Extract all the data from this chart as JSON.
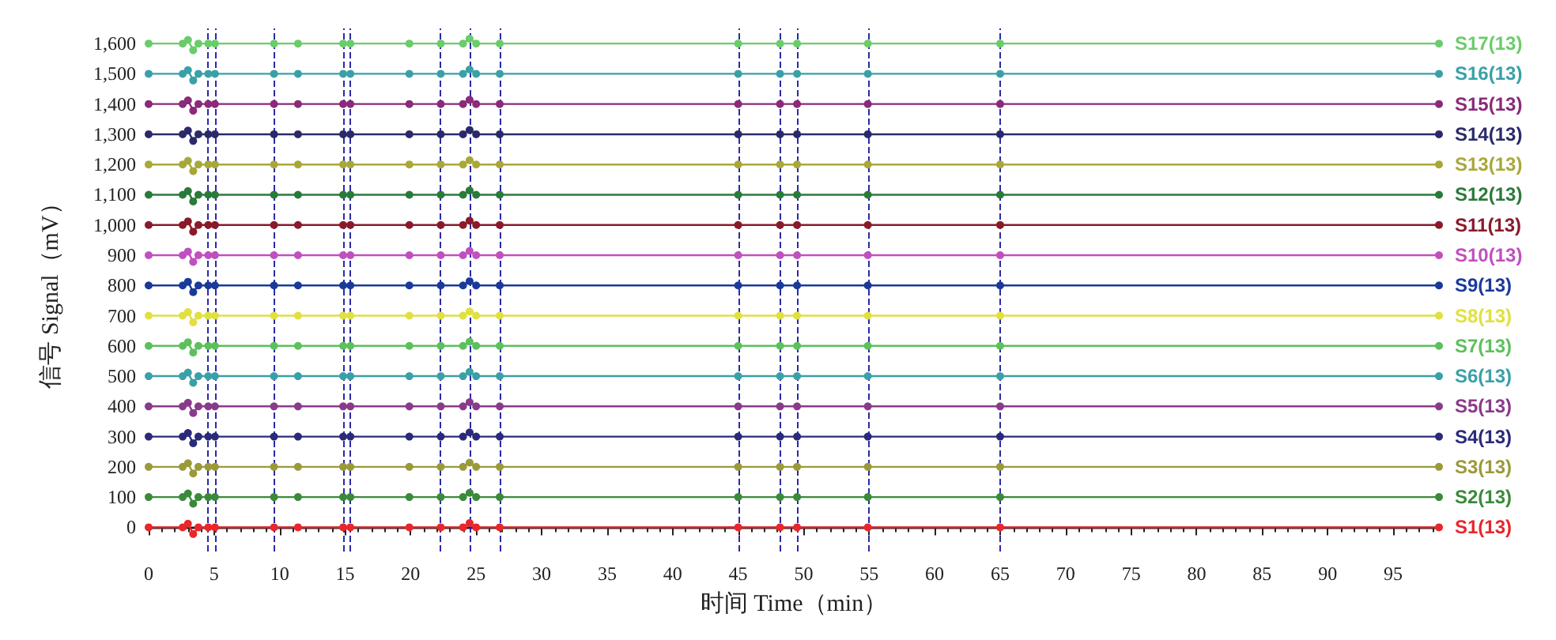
{
  "chart_data": {
    "type": "line",
    "xlabel": "时间 Time（min）",
    "ylabel": "信号 Signal（mV）",
    "x": [
      0,
      2.6,
      3.0,
      3.4,
      3.8,
      4.55,
      5.06,
      9.57,
      11.4,
      14.85,
      15.4,
      19.9,
      22.3,
      24.0,
      24.5,
      25.0,
      26.8,
      45.0,
      48.2,
      49.5,
      54.9,
      65.0,
      98.5
    ],
    "series": [
      {
        "name": "S1(13)",
        "color": "#e8262b",
        "values": [
          0,
          0,
          12,
          -22,
          0,
          0,
          0,
          0,
          0,
          0,
          0,
          0,
          0,
          0,
          14,
          0,
          0,
          0,
          0,
          0,
          0,
          0,
          0
        ]
      },
      {
        "name": "S2(13)",
        "color": "#3a8a3a",
        "values": [
          100,
          100,
          112,
          78,
          100,
          100,
          100,
          100,
          100,
          100,
          100,
          100,
          100,
          100,
          114,
          100,
          100,
          100,
          100,
          100,
          100,
          100,
          100
        ]
      },
      {
        "name": "S3(13)",
        "color": "#9a9a3a",
        "values": [
          200,
          200,
          212,
          178,
          200,
          200,
          200,
          200,
          200,
          200,
          200,
          200,
          200,
          200,
          214,
          200,
          200,
          200,
          200,
          200,
          200,
          200,
          200
        ]
      },
      {
        "name": "S4(13)",
        "color": "#2a2a7a",
        "values": [
          300,
          300,
          312,
          278,
          300,
          300,
          300,
          300,
          300,
          300,
          300,
          300,
          300,
          300,
          314,
          300,
          300,
          300,
          300,
          300,
          300,
          300,
          300
        ]
      },
      {
        "name": "S5(13)",
        "color": "#8a3a8a",
        "values": [
          400,
          400,
          412,
          378,
          400,
          400,
          400,
          400,
          400,
          400,
          400,
          400,
          400,
          400,
          414,
          400,
          400,
          400,
          400,
          400,
          400,
          400,
          400
        ]
      },
      {
        "name": "S6(13)",
        "color": "#3aa0a8",
        "values": [
          500,
          500,
          512,
          478,
          500,
          500,
          500,
          500,
          500,
          500,
          500,
          500,
          500,
          500,
          514,
          500,
          500,
          500,
          500,
          500,
          500,
          500,
          500
        ]
      },
      {
        "name": "S7(13)",
        "color": "#5cc05c",
        "values": [
          600,
          600,
          612,
          578,
          600,
          600,
          600,
          600,
          600,
          600,
          600,
          600,
          600,
          600,
          614,
          600,
          600,
          600,
          600,
          600,
          600,
          600,
          600
        ]
      },
      {
        "name": "S8(13)",
        "color": "#e0e040",
        "values": [
          700,
          700,
          712,
          678,
          700,
          700,
          700,
          700,
          700,
          700,
          700,
          700,
          700,
          700,
          714,
          700,
          700,
          700,
          700,
          700,
          700,
          700,
          700
        ]
      },
      {
        "name": "S9(13)",
        "color": "#1a3a9a",
        "values": [
          800,
          800,
          812,
          778,
          800,
          800,
          800,
          800,
          800,
          800,
          800,
          800,
          800,
          800,
          814,
          800,
          800,
          800,
          800,
          800,
          800,
          800,
          800
        ]
      },
      {
        "name": "S10(13)",
        "color": "#c050c0",
        "values": [
          900,
          900,
          912,
          878,
          900,
          900,
          900,
          900,
          900,
          900,
          900,
          900,
          900,
          900,
          914,
          900,
          900,
          900,
          900,
          900,
          900,
          900,
          900
        ]
      },
      {
        "name": "S11(13)",
        "color": "#8a1a2a",
        "values": [
          1000,
          1000,
          1012,
          978,
          1000,
          1000,
          1000,
          1000,
          1000,
          1000,
          1000,
          1000,
          1000,
          1000,
          1014,
          1000,
          1000,
          1000,
          1000,
          1000,
          1000,
          1000,
          1000
        ]
      },
      {
        "name": "S12(13)",
        "color": "#2a7a3a",
        "values": [
          1100,
          1100,
          1112,
          1078,
          1100,
          1100,
          1100,
          1100,
          1100,
          1100,
          1100,
          1100,
          1100,
          1100,
          1114,
          1100,
          1100,
          1100,
          1100,
          1100,
          1100,
          1100,
          1100
        ]
      },
      {
        "name": "S13(13)",
        "color": "#a8a83a",
        "values": [
          1200,
          1200,
          1212,
          1178,
          1200,
          1200,
          1200,
          1200,
          1200,
          1200,
          1200,
          1200,
          1200,
          1200,
          1214,
          1200,
          1200,
          1200,
          1200,
          1200,
          1200,
          1200,
          1200
        ]
      },
      {
        "name": "S14(13)",
        "color": "#2a2a6a",
        "values": [
          1300,
          1300,
          1312,
          1278,
          1300,
          1300,
          1300,
          1300,
          1300,
          1300,
          1300,
          1300,
          1300,
          1300,
          1314,
          1300,
          1300,
          1300,
          1300,
          1300,
          1300,
          1300,
          1300
        ]
      },
      {
        "name": "S15(13)",
        "color": "#8a2a7a",
        "values": [
          1400,
          1400,
          1412,
          1378,
          1400,
          1400,
          1400,
          1400,
          1400,
          1400,
          1400,
          1400,
          1400,
          1400,
          1414,
          1400,
          1400,
          1400,
          1400,
          1400,
          1400,
          1400,
          1400
        ]
      },
      {
        "name": "S16(13)",
        "color": "#3aa0a8",
        "values": [
          1500,
          1500,
          1512,
          1478,
          1500,
          1500,
          1500,
          1500,
          1500,
          1500,
          1500,
          1500,
          1500,
          1500,
          1514,
          1500,
          1500,
          1500,
          1500,
          1500,
          1500,
          1500,
          1500
        ]
      },
      {
        "name": "S17(13)",
        "color": "#6acc6a",
        "values": [
          1600,
          1600,
          1612,
          1578,
          1600,
          1600,
          1600,
          1600,
          1600,
          1600,
          1600,
          1600,
          1600,
          1600,
          1616,
          1600,
          1600,
          1600,
          1600,
          1600,
          1600,
          1600,
          1600
        ]
      }
    ],
    "xlim": [
      0,
      98.5
    ],
    "xticks": [
      0,
      5,
      10,
      15,
      20,
      25,
      30,
      35,
      40,
      45,
      50,
      55,
      60,
      65,
      70,
      75,
      80,
      85,
      90,
      95
    ],
    "ylim": [
      -80,
      1650
    ],
    "yticks": [
      0,
      100,
      200,
      300,
      400,
      500,
      600,
      700,
      800,
      900,
      {
        "value": 1000,
        "label": "1,000"
      },
      {
        "value": 1100,
        "label": "1,100"
      },
      {
        "value": 1200,
        "label": "1,200"
      },
      {
        "value": 1300,
        "label": "1,300"
      },
      {
        "value": 1400,
        "label": "1,400"
      },
      {
        "value": 1500,
        "label": "1,500"
      },
      {
        "value": 1600,
        "label": "1,600"
      }
    ],
    "ref_lines": [
      {
        "axis": "x",
        "value": 4.55,
        "color": "#2a2aa8",
        "line_style": "dashed"
      },
      {
        "axis": "x",
        "value": 5.06,
        "color": "#2a2aa8",
        "line_style": "dashed"
      },
      {
        "axis": "x",
        "value": 9.57,
        "color": "#2a2aa8",
        "line_style": "dashed"
      },
      {
        "axis": "x",
        "value": 14.85,
        "color": "#2a2aa8",
        "line_style": "dashed"
      },
      {
        "axis": "x",
        "value": 15.4,
        "color": "#2a2aa8",
        "line_style": "dashed"
      },
      {
        "axis": "x",
        "value": 22.3,
        "color": "#2a2aa8",
        "line_style": "dashed"
      },
      {
        "axis": "x",
        "value": 24.5,
        "color": "#2a2aa8",
        "line_style": "dashed"
      },
      {
        "axis": "x",
        "value": 26.8,
        "color": "#2a2aa8",
        "line_style": "dashed"
      },
      {
        "axis": "x",
        "value": 45.0,
        "color": "#2a2aa8",
        "line_style": "dashed"
      },
      {
        "axis": "x",
        "value": 48.2,
        "color": "#2a2aa8",
        "line_style": "dashed"
      },
      {
        "axis": "x",
        "value": 49.5,
        "color": "#2a2aa8",
        "line_style": "dashed"
      },
      {
        "axis": "x",
        "value": 54.9,
        "color": "#2a2aa8",
        "line_style": "dashed"
      },
      {
        "axis": "x",
        "value": 65.0,
        "color": "#2a2aa8",
        "line_style": "dashed"
      }
    ],
    "legend": "right",
    "marker": "circle",
    "grid": false
  }
}
